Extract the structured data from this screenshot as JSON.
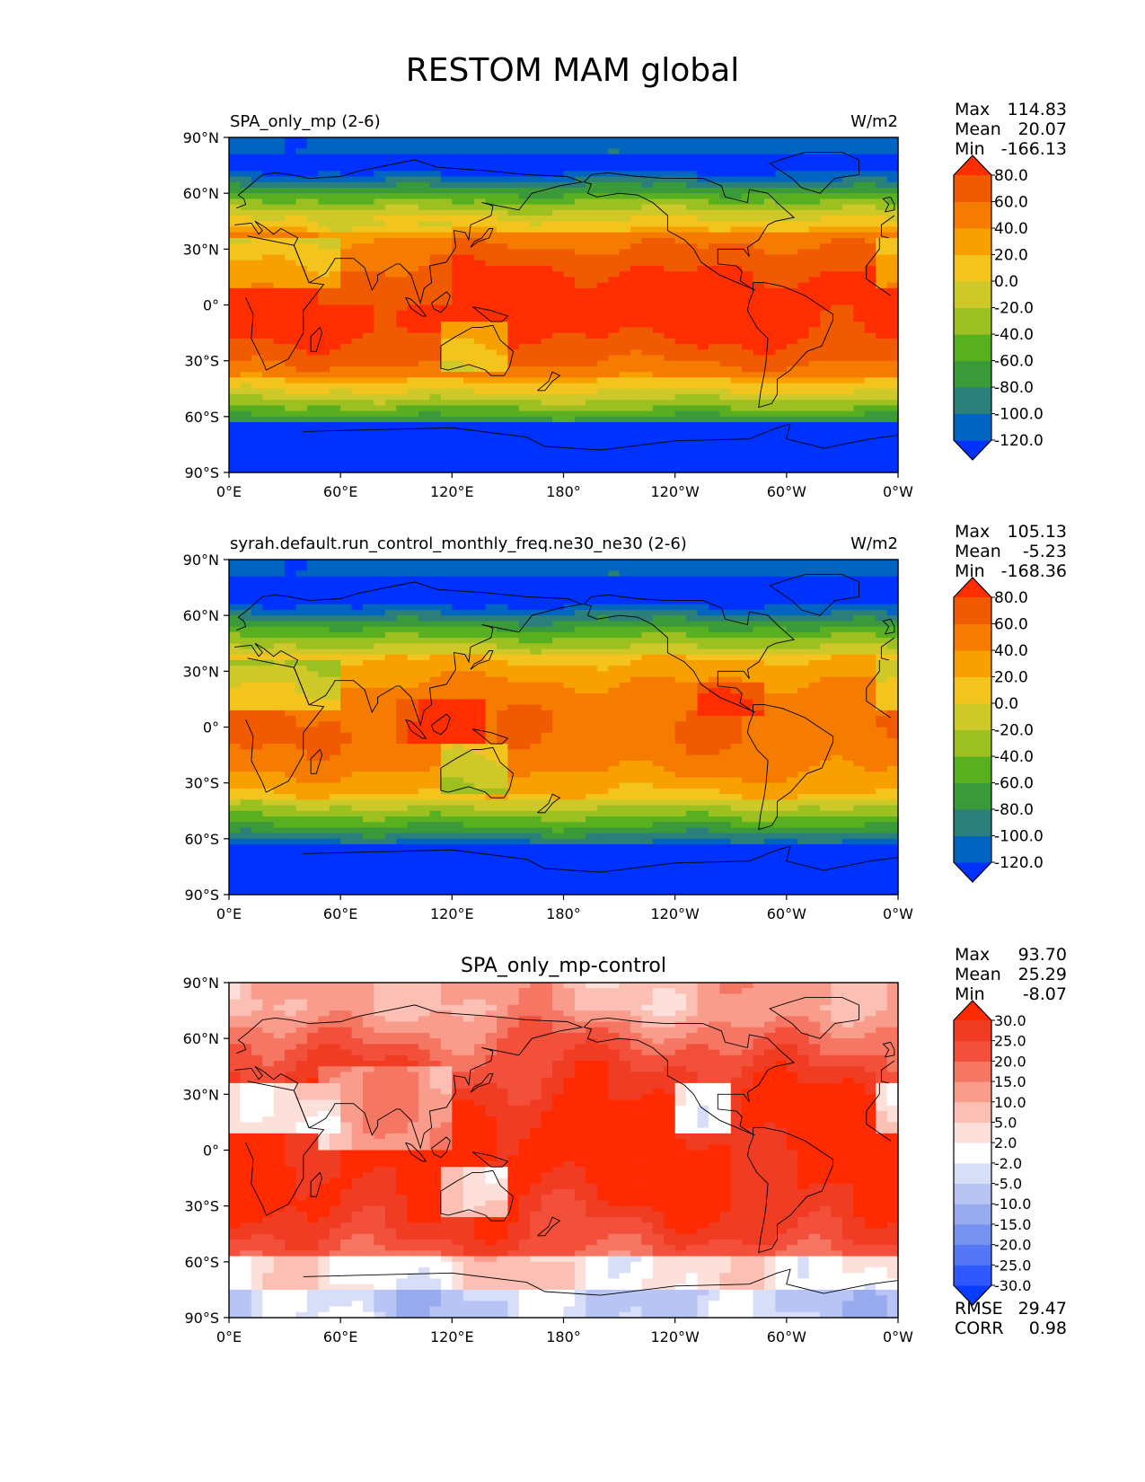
{
  "figure_title": "RESTOM MAM global",
  "chart_data": [
    {
      "type": "heatmap",
      "panel": "test",
      "title": "SPA_only_mp (2-6)",
      "units": "W/m2",
      "stats": {
        "max_label": "Max",
        "max": "114.83",
        "mean_label": "Mean",
        "mean": "20.07",
        "min_label": "Min",
        "min": "-166.13"
      },
      "x_ticks": [
        "0°E",
        "60°E",
        "120°E",
        "180°",
        "120°W",
        "60°W",
        "0°W"
      ],
      "y_ticks": [
        "90°N",
        "60°N",
        "30°N",
        "0°",
        "30°S",
        "60°S",
        "90°S"
      ],
      "xlim": [
        0,
        360
      ],
      "ylim": [
        -90,
        90
      ],
      "colorbar": {
        "extend": "both",
        "levels": [
          -120,
          -100,
          -80,
          -60,
          -40,
          -20,
          0,
          20,
          40,
          60,
          80
        ],
        "tick_labels": [
          "-120.0",
          "-100.0",
          "-80.0",
          "-60.0",
          "-40.0",
          "-20.0",
          "0.0",
          "20.0",
          "40.0",
          "60.0",
          "80.0"
        ],
        "colors": [
          "#0032ff",
          "#0064c0",
          "#2a7f7a",
          "#3a9a3a",
          "#58b020",
          "#9bc020",
          "#cec828",
          "#f3c41e",
          "#f7a000",
          "#f57c00",
          "#f05a00",
          "#ff2e00"
        ]
      }
    },
    {
      "type": "heatmap",
      "panel": "reference",
      "title": "syrah.default.run_control_monthly_freq.ne30_ne30 (2-6)",
      "units": "W/m2",
      "stats": {
        "max_label": "Max",
        "max": "105.13",
        "mean_label": "Mean",
        "mean": "-5.23",
        "min_label": "Min",
        "min": "-168.36"
      },
      "x_ticks": [
        "0°E",
        "60°E",
        "120°E",
        "180°",
        "120°W",
        "60°W",
        "0°W"
      ],
      "y_ticks": [
        "90°N",
        "60°N",
        "30°N",
        "0°",
        "30°S",
        "60°S",
        "90°S"
      ],
      "xlim": [
        0,
        360
      ],
      "ylim": [
        -90,
        90
      ],
      "colorbar": {
        "extend": "both",
        "levels": [
          -120,
          -100,
          -80,
          -60,
          -40,
          -20,
          0,
          20,
          40,
          60,
          80
        ],
        "tick_labels": [
          "-120.0",
          "-100.0",
          "-80.0",
          "-60.0",
          "-40.0",
          "-20.0",
          "0.0",
          "20.0",
          "40.0",
          "60.0",
          "80.0"
        ],
        "colors": [
          "#0032ff",
          "#0064c0",
          "#2a7f7a",
          "#3a9a3a",
          "#58b020",
          "#9bc020",
          "#cec828",
          "#f3c41e",
          "#f7a000",
          "#f57c00",
          "#f05a00",
          "#ff2e00"
        ]
      }
    },
    {
      "type": "heatmap",
      "panel": "difference",
      "title": "SPA_only_mp-control",
      "units": "",
      "stats": {
        "max_label": "Max",
        "max": "93.70",
        "mean_label": "Mean",
        "mean": "25.29",
        "min_label": "Min",
        "min": "-8.07"
      },
      "extra_stats": {
        "rmse_label": "RMSE",
        "rmse": "29.47",
        "corr_label": "CORR",
        "corr": "0.98"
      },
      "x_ticks": [
        "0°E",
        "60°E",
        "120°E",
        "180°",
        "120°W",
        "60°W",
        "0°W"
      ],
      "y_ticks": [
        "90°N",
        "60°N",
        "30°N",
        "0°",
        "30°S",
        "60°S",
        "90°S"
      ],
      "xlim": [
        0,
        360
      ],
      "ylim": [
        -90,
        90
      ],
      "colorbar": {
        "extend": "both",
        "levels": [
          -30,
          -25,
          -20,
          -15,
          -10,
          -5,
          -2,
          2,
          5,
          10,
          15,
          20,
          25,
          30
        ],
        "tick_labels": [
          "-30.0",
          "-25.0",
          "-20.0",
          "-15.0",
          "-10.0",
          "-5.0",
          "-2.0",
          "2.0",
          "5.0",
          "10.0",
          "15.0",
          "20.0",
          "25.0",
          "30.0"
        ],
        "colors": [
          "#0a3cff",
          "#2f58ff",
          "#5576f5",
          "#7592f0",
          "#98abef",
          "#b8c5f4",
          "#d6def8",
          "#ffffff",
          "#fde0da",
          "#fcbfb3",
          "#fa9c8c",
          "#f57763",
          "#f2503a",
          "#f03c22",
          "#ff2a00"
        ]
      }
    }
  ]
}
